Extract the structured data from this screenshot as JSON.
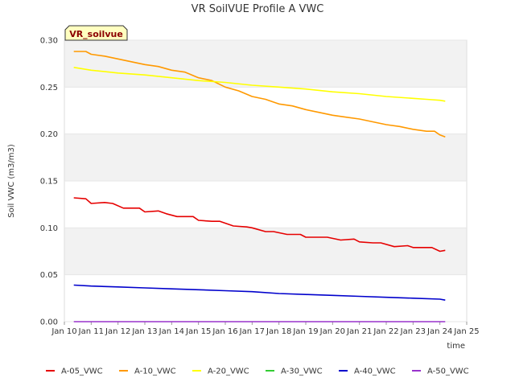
{
  "chart_data": {
    "type": "line",
    "title": "VR SoilVUE Profile A VWC",
    "xlabel": "time",
    "ylabel": "Soil VWC (m3/m3)",
    "badge": "VR_soilvue",
    "xlim": [
      10,
      25
    ],
    "ylim": [
      0,
      0.3
    ],
    "x_ticks": [
      10,
      11,
      12,
      13,
      14,
      15,
      16,
      17,
      18,
      19,
      20,
      21,
      22,
      23,
      24,
      25
    ],
    "x_tick_labels": [
      "Jan 10",
      "Jan 11",
      "Jan 12",
      "Jan 13",
      "Jan 14",
      "Jan 15",
      "Jan 16",
      "Jan 17",
      "Jan 18",
      "Jan 19",
      "Jan 20",
      "Jan 21",
      "Jan 22",
      "Jan 23",
      "Jan 24",
      "Jan 25"
    ],
    "y_ticks": [
      0.0,
      0.05,
      0.1,
      0.15,
      0.2,
      0.25,
      0.3
    ],
    "y_tick_labels": [
      "0.00",
      "0.05",
      "0.10",
      "0.15",
      "0.20",
      "0.25",
      "0.30"
    ],
    "grid_bands": true,
    "legend_position": "bottom",
    "series": [
      {
        "name": "A-05_VWC",
        "color": "#e60000",
        "x": [
          10.35,
          10.8,
          11.0,
          11.5,
          11.8,
          12.2,
          12.8,
          13.0,
          13.5,
          13.8,
          14.2,
          14.8,
          15.0,
          15.5,
          15.8,
          16.3,
          16.8,
          17.0,
          17.5,
          17.8,
          18.3,
          18.8,
          19.0,
          19.5,
          19.8,
          20.3,
          20.8,
          21.0,
          21.5,
          21.8,
          22.3,
          22.8,
          23.0,
          23.5,
          23.7,
          24.0,
          24.2
        ],
        "y": [
          0.132,
          0.131,
          0.126,
          0.127,
          0.126,
          0.121,
          0.121,
          0.117,
          0.118,
          0.115,
          0.112,
          0.112,
          0.108,
          0.107,
          0.107,
          0.102,
          0.101,
          0.1,
          0.096,
          0.096,
          0.093,
          0.093,
          0.09,
          0.09,
          0.09,
          0.087,
          0.088,
          0.085,
          0.084,
          0.084,
          0.08,
          0.081,
          0.079,
          0.079,
          0.079,
          0.075,
          0.076
        ]
      },
      {
        "name": "A-10_VWC",
        "color": "#ff9900",
        "x": [
          10.35,
          10.8,
          11.0,
          11.5,
          12.0,
          12.5,
          13.0,
          13.5,
          14.0,
          14.5,
          15.0,
          15.5,
          16.0,
          16.5,
          17.0,
          17.5,
          18.0,
          18.5,
          19.0,
          19.5,
          20.0,
          20.5,
          21.0,
          21.5,
          22.0,
          22.5,
          23.0,
          23.5,
          23.8,
          24.0,
          24.2
        ],
        "y": [
          0.288,
          0.288,
          0.285,
          0.283,
          0.28,
          0.277,
          0.274,
          0.272,
          0.268,
          0.266,
          0.26,
          0.257,
          0.25,
          0.246,
          0.24,
          0.237,
          0.232,
          0.23,
          0.226,
          0.223,
          0.22,
          0.218,
          0.216,
          0.213,
          0.21,
          0.208,
          0.205,
          0.203,
          0.203,
          0.199,
          0.197
        ]
      },
      {
        "name": "A-20_VWC",
        "color": "#ffff00",
        "x": [
          10.35,
          11.0,
          12.0,
          13.0,
          14.0,
          15.0,
          16.0,
          17.0,
          18.0,
          19.0,
          20.0,
          21.0,
          22.0,
          23.0,
          23.5,
          24.0,
          24.2
        ],
        "y": [
          0.271,
          0.268,
          0.265,
          0.263,
          0.26,
          0.257,
          0.255,
          0.252,
          0.25,
          0.248,
          0.245,
          0.243,
          0.24,
          0.238,
          0.237,
          0.236,
          0.235
        ]
      },
      {
        "name": "A-30_VWC",
        "color": "#33cc33",
        "x": [],
        "y": []
      },
      {
        "name": "A-40_VWC",
        "color": "#0000cc",
        "x": [
          10.35,
          11.0,
          12.0,
          13.0,
          14.0,
          15.0,
          16.0,
          17.0,
          18.0,
          19.0,
          20.0,
          21.0,
          22.0,
          23.0,
          24.0,
          24.2
        ],
        "y": [
          0.039,
          0.038,
          0.037,
          0.036,
          0.035,
          0.034,
          0.033,
          0.032,
          0.03,
          0.029,
          0.028,
          0.027,
          0.026,
          0.025,
          0.024,
          0.023
        ]
      },
      {
        "name": "A-50_VWC",
        "color": "#9933cc",
        "x": [
          10.35,
          24.2
        ],
        "y": [
          0.0,
          0.0
        ]
      }
    ]
  }
}
